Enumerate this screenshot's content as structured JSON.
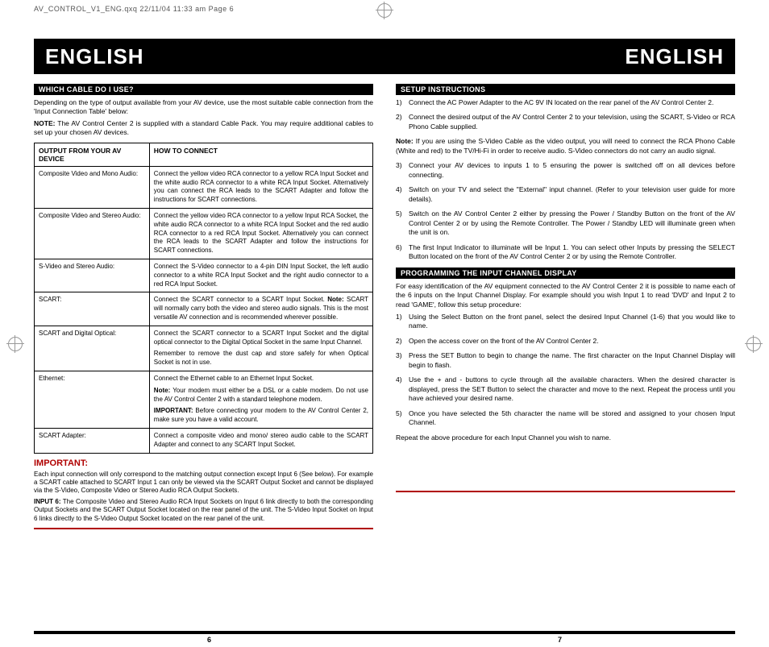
{
  "header_line": "AV_CONTROL_V1_ENG.qxq  22/11/04  11:33 am  Page 6",
  "band": {
    "left": "ENGLISH",
    "right": "ENGLISH"
  },
  "left": {
    "section1": "WHICH CABLE DO I USE?",
    "intro": "Depending on the type of output available from your AV device, use the most suitable cable connection from the 'Input Connection Table' below:",
    "note_label": "NOTE:",
    "note": "The AV Control Center 2 is supplied with a standard Cable Pack.  You may require additional cables to set up your chosen AV devices.",
    "table": {
      "col1": "OUTPUT FROM YOUR AV DEVICE",
      "col2": "HOW TO CONNECT",
      "rows": [
        {
          "out": "Composite Video and Mono Audio:",
          "how": [
            "Connect the yellow video RCA connector to a yellow RCA Input Socket and the white audio RCA connector to a white RCA Input Socket. Alternatively you can connect the RCA leads to the SCART Adapter and follow the instructions for SCART connections."
          ]
        },
        {
          "out": "Composite Video and Stereo Audio:",
          "how": [
            "Connect the yellow video RCA connector to a yellow Input RCA Socket, the white audio RCA connector to a white RCA Input Socket and the red audio RCA connector to a red RCA Input Socket.  Alternatively you can connect the RCA leads to the SCART Adapter and follow the instructions for SCART connections."
          ]
        },
        {
          "out": "S-Video and Stereo Audio:",
          "how": [
            "Connect the S-Video connector to a 4-pin DIN Input Socket, the left audio connector to a white RCA Input Socket and the right audio connector to a red RCA Input Socket."
          ]
        },
        {
          "out": "SCART:",
          "how": [
            "Connect the SCART connector to a SCART Input Socket. <b>Note:</b> SCART will normally carry both the video and stereo audio signals. This is the most versatile AV connection and is recommended wherever possible."
          ]
        },
        {
          "out": "SCART and Digital Optical:",
          "how": [
            "Connect the SCART connector to a SCART Input Socket and the digital optical connector to the Digital Optical Socket in the same Input Channel.",
            "Remember to remove the dust cap and store safely for when Optical Socket is not in use."
          ]
        },
        {
          "out": "Ethernet:",
          "how": [
            "Connect the Ethernet cable to an Ethernet Input Socket.",
            "<b>Note:</b> Your modem must either be a DSL or a cable modem. Do not use the AV Control Center 2 with a standard telephone modem.",
            "<b>IMPORTANT:</b> Before connecting your modem to the AV Control Center 2, make sure you have a valid account."
          ]
        },
        {
          "out": "SCART Adapter:",
          "how": [
            "Connect a composite video and mono/ stereo audio cable to the SCART Adapter and connect to any SCART Input Socket."
          ]
        }
      ]
    },
    "important_head": "IMPORTANT:",
    "important_p1": "Each input connection will only correspond to the matching output connection except Input 6 (See below). For example a SCART cable attached to SCART Input 1 can only be viewed via the SCART Output Socket and cannot be displayed via the S-Video, Composite Video or Stereo Audio RCA Output Sockets.",
    "important_p2_label": "INPUT 6:",
    "important_p2": "The Composite Video and Stereo Audio RCA Input Sockets on Input 6 link directly to both the corresponding Output Sockets and the SCART Output Socket located on the rear panel of the unit.  The S-Video Input Socket on Input 6 links directly to the S-Video Output Socket located on the rear panel of the unit."
  },
  "right": {
    "section1": "SETUP INSTRUCTIONS",
    "setup_steps": [
      "Connect the AC Power Adapter to the AC 9V IN located on the rear panel of the AV Control Center 2.",
      "Connect the desired output of the AV Control Center 2 to your television, using the SCART, S-Video or RCA Phono Cable supplied.",
      "",
      "Connect your AV devices to inputs 1 to 5 ensuring the power is switched off on all devices before connecting.",
      "Switch on your TV and select the \"External\" input channel. (Refer to your television user guide for more details).",
      "Switch on the AV Control Center 2 either by pressing the Power / Standby Button on the front of the AV Control Center 2 or by using the Remote Controller.  The Power / Standby LED will illuminate green when the unit is on.",
      "The first Input Indicator to illuminate will be Input 1.  You can select other Inputs by pressing the SELECT Button located on the front of the AV Control Center 2 or by using the Remote Controller."
    ],
    "setup_note_label": "Note:",
    "setup_note": "If you are using the S-Video Cable as the video output, you will need to connect the RCA Phono Cable (White and red) to the TV/Hi-Fi in order to receive audio.  S-Video connectors do not carry an audio signal.",
    "section2": "PROGRAMMING THE INPUT CHANNEL DISPLAY",
    "prog_intro": "For easy identification of the AV equipment connected to the AV Control Center 2 it is possible to name each of the 6 inputs on the Input Channel Display.  For example should you wish Input 1 to read 'DVD' and Input 2 to read 'GAME', follow this setup procedure:",
    "prog_steps": [
      "Using the Select Button on the front panel, select the desired Input Channel (1-6) that you would like to name.",
      "Open the access cover on the front of the AV Control Center 2.",
      "Press the SET Button to begin to change the name.  The first character on the Input Channel Display will begin to flash.",
      "Use the + and - buttons to cycle through all the available characters.  When the desired character is displayed, press the SET Button to select the character and move to the next.  Repeat the process until you have achieved your desired name.",
      "Once you have selected the 5th character the name will be stored and assigned to your chosen Input Channel."
    ],
    "prog_outro": "Repeat the above procedure for each Input Channel you wish to name."
  },
  "page_left": "6",
  "page_right": "7",
  "colors": {
    "red": "#b00000",
    "black": "#000000"
  }
}
